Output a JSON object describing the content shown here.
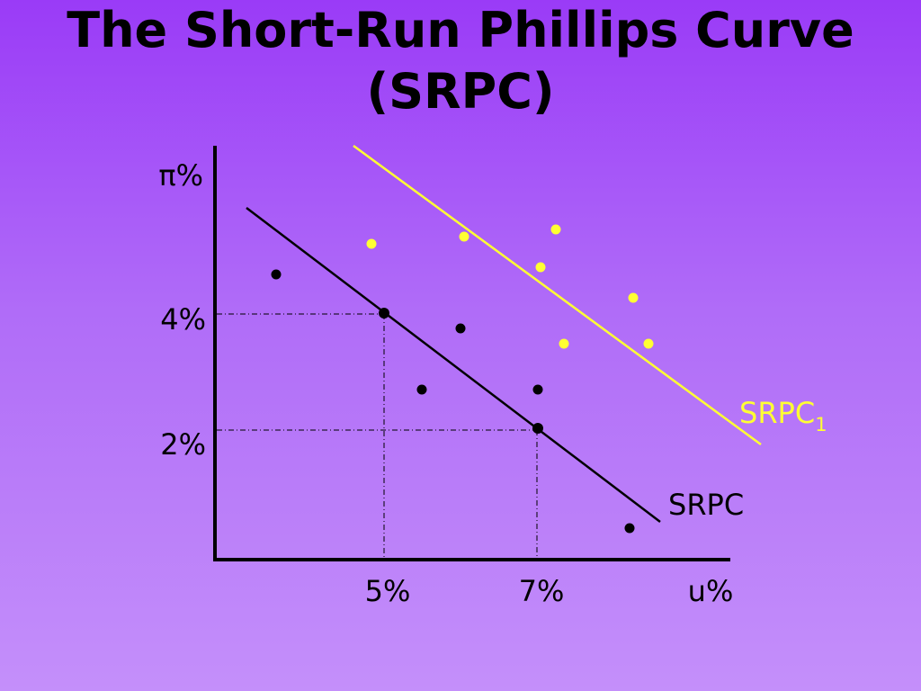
{
  "title": {
    "line1": "The Short-Run Phillips Curve",
    "line2": "(SRPC)"
  },
  "axes": {
    "y_label": "π%",
    "x_label": "u%",
    "y_ticks": [
      "4%",
      "2%"
    ],
    "x_ticks": [
      "5%",
      "7%"
    ]
  },
  "curves": {
    "srpc_label": "SRPC",
    "srpc1_label_main": "SRPC",
    "srpc1_label_sub": "1"
  },
  "colors": {
    "background_top": "#9a3bf7",
    "background_bottom": "#c48ffa",
    "srpc": "#000000",
    "srpc1": "#ffff33",
    "text": "#000000"
  }
}
